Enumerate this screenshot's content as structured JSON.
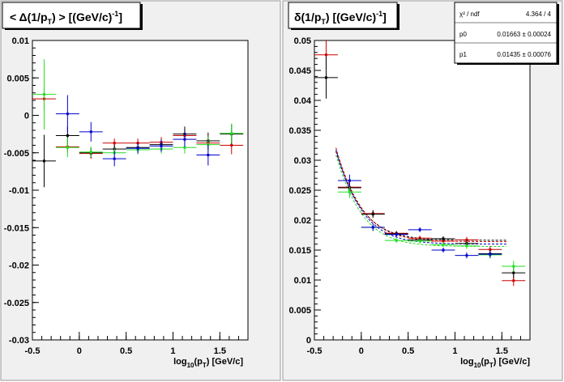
{
  "panels": [
    {
      "title_html": "< Δ(1/p_T) >  [(GeV/c)^-1]",
      "title_parts": {
        "pre": "< Δ(1/p",
        "sub": "T",
        "mid": ") >  [(GeV/c)",
        "sup": "-1",
        "post": "]"
      },
      "xlabel_parts": {
        "pre": "log",
        "sub1": "10",
        "mid": "(p",
        "sub2": "T",
        "post": ")  [GeV/c]"
      }
    },
    {
      "title_parts": {
        "pre": "δ(1/p",
        "sub": "T",
        "mid": ")  [(GeV/c)",
        "sup": "-1",
        "post": "]"
      },
      "xlabel_parts": {
        "pre": "log",
        "sub1": "10",
        "mid": "(p",
        "sub2": "T",
        "post": ")  [GeV/c]"
      },
      "stats": [
        {
          "label": "χ² / ndf",
          "value": "4.364 / 4"
        },
        {
          "label": "p0",
          "value": "0.01663 ± 0.00024"
        },
        {
          "label": "p1",
          "value": "0.01435 ± 0.00076"
        }
      ]
    }
  ],
  "colors": {
    "black": "#000000",
    "red": "#cc0000",
    "green": "#22dd22",
    "blue": "#0000cc",
    "frame_bg": "#f0f0f0"
  },
  "chart_data": [
    {
      "type": "scatter",
      "title": "< Δ(1/pT) >  [(GeV/c)-1]",
      "xlabel": "log10(pT)  [GeV/c]",
      "ylabel": "",
      "xlim": [
        -0.5,
        1.8
      ],
      "ylim": [
        -0.03,
        0.01
      ],
      "x_ticks": [
        "-0.5",
        "0",
        "0.5",
        "1",
        "1.5"
      ],
      "y_ticks": [
        "-0.03",
        "-0.025",
        "-0.02",
        "-0.015",
        "-0.01",
        "-0.005",
        "0",
        "0.005",
        "0.01"
      ],
      "series": [
        {
          "color": "red",
          "x": [
            -0.375,
            -0.125,
            0.125,
            0.375,
            0.625,
            0.875,
            1.125,
            1.375,
            1.625
          ],
          "y": [
            0.0022,
            -0.0042,
            -0.0051,
            -0.0037,
            -0.0037,
            -0.0036,
            -0.0027,
            -0.0037,
            -0.004
          ],
          "yerr": [
            0.0015,
            0.0008,
            0.0007,
            0.0006,
            0.0006,
            0.0007,
            0.0008,
            0.0009,
            0.0012
          ],
          "xerr": 0.125
        },
        {
          "color": "black",
          "x": [
            -0.375,
            -0.125,
            0.125,
            0.375,
            0.625,
            0.875,
            1.125,
            1.375,
            1.625
          ],
          "y": [
            -0.0061,
            -0.0027,
            -0.005,
            -0.0045,
            -0.0043,
            -0.0039,
            -0.0025,
            -0.0034,
            -0.0025
          ],
          "yerr": [
            0.0035,
            0.0012,
            0.0007,
            0.0006,
            0.0006,
            0.0007,
            0.001,
            0.0011,
            0.0013
          ],
          "xerr": 0.125
        },
        {
          "color": "green",
          "x": [
            -0.375,
            -0.125,
            0.125,
            0.375,
            0.625,
            0.875,
            1.125,
            1.375,
            1.625
          ],
          "y": [
            0.0028,
            -0.0043,
            -0.0049,
            -0.005,
            -0.0046,
            -0.0045,
            -0.0043,
            -0.0039,
            -0.0024
          ],
          "yerr": [
            0.0047,
            0.0013,
            0.0007,
            0.0006,
            0.0006,
            0.0006,
            0.0008,
            0.0011,
            0.0013
          ],
          "xerr": 0.125
        },
        {
          "color": "blue",
          "x": [
            -0.125,
            0.125,
            0.375,
            0.625,
            0.875,
            1.125,
            1.375
          ],
          "y": [
            0.0002,
            -0.0022,
            -0.0058,
            -0.0044,
            -0.0041,
            -0.0032,
            -0.0053
          ],
          "yerr": [
            0.0025,
            0.0013,
            0.001,
            0.0007,
            0.0008,
            0.001,
            0.0014
          ],
          "xerr": 0.125
        }
      ]
    },
    {
      "type": "scatter",
      "title": "δ(1/pT)  [(GeV/c)-1]",
      "xlabel": "log10(pT)  [GeV/c]",
      "ylabel": "",
      "xlim": [
        -0.5,
        1.8
      ],
      "ylim": [
        0,
        0.05
      ],
      "x_ticks": [
        "-0.5",
        "0",
        "0.5",
        "1",
        "1.5"
      ],
      "y_ticks": [
        "0",
        "0.005",
        "0.01",
        "0.015",
        "0.02",
        "0.025",
        "0.03",
        "0.035",
        "0.04",
        "0.045",
        "0.05"
      ],
      "series": [
        {
          "color": "red",
          "x": [
            -0.375,
            -0.125,
            0.125,
            0.375,
            0.625,
            0.875,
            1.125,
            1.375,
            1.625
          ],
          "y": [
            0.0476,
            0.0255,
            0.0211,
            0.0178,
            0.017,
            0.0165,
            0.0167,
            0.0151,
            0.0099
          ],
          "yerr": [
            0.0024,
            0.001,
            0.0006,
            0.0004,
            0.0004,
            0.0004,
            0.0005,
            0.0006,
            0.0009
          ],
          "xerr": 0.125
        },
        {
          "color": "black",
          "x": [
            -0.375,
            -0.125,
            0.125,
            0.375,
            0.625,
            0.875,
            1.125,
            1.375,
            1.625
          ],
          "y": [
            0.0438,
            0.0254,
            0.021,
            0.0177,
            0.0167,
            0.0169,
            0.0161,
            0.0144,
            0.0112
          ],
          "yerr": [
            0.0035,
            0.001,
            0.0006,
            0.0004,
            0.0004,
            0.0004,
            0.0005,
            0.0006,
            0.0009
          ],
          "xerr": 0.125
        },
        {
          "color": "green",
          "x": [
            -0.125,
            0.125,
            0.375,
            0.625,
            0.875,
            1.125,
            1.375,
            1.625
          ],
          "y": [
            0.0247,
            0.0188,
            0.0166,
            0.0165,
            0.0159,
            0.0157,
            0.0142,
            0.0123
          ],
          "yerr": [
            0.001,
            0.0006,
            0.0004,
            0.0004,
            0.0004,
            0.0005,
            0.0006,
            0.0009
          ],
          "xerr": 0.125
        },
        {
          "color": "blue",
          "x": [
            -0.125,
            0.125,
            0.375,
            0.625,
            0.875,
            1.125,
            1.375
          ],
          "y": [
            0.0266,
            0.0188,
            0.0176,
            0.0184,
            0.015,
            0.0141,
            0.0143
          ],
          "yerr": [
            0.001,
            0.0006,
            0.0004,
            0.0004,
            0.0004,
            0.0005,
            0.0006
          ],
          "xerr": 0.125
        }
      ],
      "fits": [
        {
          "color": "black",
          "p0": 0.01663,
          "p1": 0.01435,
          "xrange": [
            -0.27,
            1.55
          ]
        },
        {
          "color": "red",
          "p0": 0.0164,
          "p1": 0.0148,
          "xrange": [
            -0.27,
            1.55
          ]
        },
        {
          "color": "green",
          "p0": 0.0156,
          "p1": 0.0143,
          "xrange": [
            -0.27,
            1.55
          ]
        },
        {
          "color": "blue",
          "p0": 0.016,
          "p1": 0.0147,
          "xrange": [
            -0.27,
            1.55
          ]
        }
      ]
    }
  ]
}
